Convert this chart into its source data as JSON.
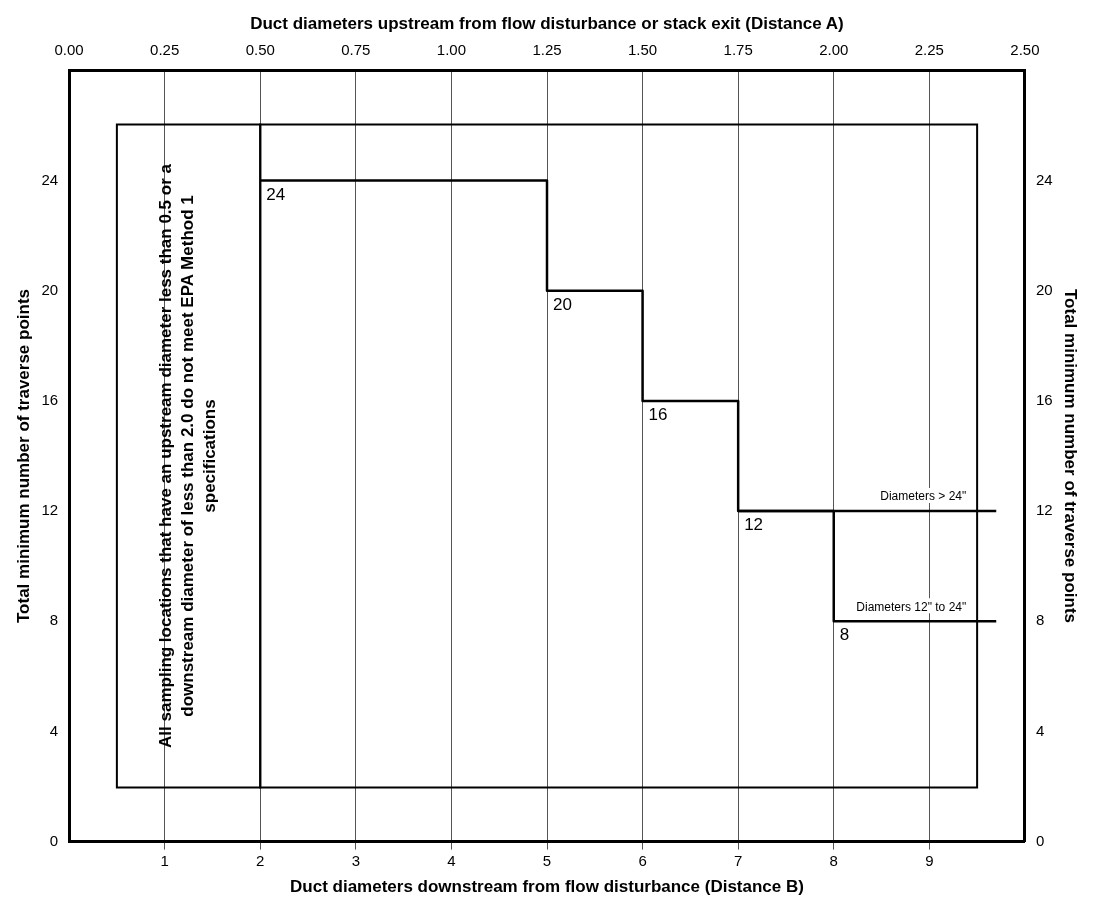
{
  "chart_data": {
    "type": "step",
    "xlabel": "Duct diameters downstream from flow disturbance (Distance B)",
    "x2label": "Duct diameters upstream from flow disturbance or stack exit (Distance A)",
    "ylabel": "Total minimum number of traverse points",
    "y2label": "Total minimum number of traverse points",
    "xlim": [
      0,
      10
    ],
    "xticks": [
      1,
      2,
      3,
      4,
      5,
      6,
      7,
      8,
      9
    ],
    "x2lim": [
      0,
      2.5
    ],
    "x2ticks": [
      {
        "value": 0,
        "label": "0.00"
      },
      {
        "value": 0.25,
        "label": "0.25"
      },
      {
        "value": 0.5,
        "label": "0.50"
      },
      {
        "value": 0.75,
        "label": "0.75"
      },
      {
        "value": 1,
        "label": "1.00"
      },
      {
        "value": 1.25,
        "label": "1.25"
      },
      {
        "value": 1.5,
        "label": "1.50"
      },
      {
        "value": 1.75,
        "label": "1.75"
      },
      {
        "value": 2,
        "label": "2.00"
      },
      {
        "value": 2.25,
        "label": "2.25"
      },
      {
        "value": 2.5,
        "label": "2.50"
      }
    ],
    "ylim": [
      0,
      28
    ],
    "yticks": [
      0,
      4,
      8,
      12,
      16,
      20,
      24
    ],
    "y2lim": [
      0,
      28
    ],
    "y2ticks": [
      0,
      4,
      8,
      12,
      16,
      20,
      24
    ],
    "grid": "x",
    "marker": "none",
    "series": [
      {
        "name": "Diameters > 24\"",
        "color": "#000000",
        "x": [
          2,
          5,
          6,
          7,
          9.7
        ],
        "values": [
          24,
          20,
          16,
          12,
          12
        ],
        "value_labels": [
          "24",
          "20",
          "16",
          "12",
          null
        ]
      },
      {
        "name": "Diameters 12\" to 24\"",
        "color": "#000000",
        "x": [
          7,
          8,
          9.7
        ],
        "values": [
          12,
          8,
          8
        ],
        "value_labels": [
          null,
          "8",
          null
        ]
      }
    ],
    "annotations": [
      "All sampling locations that have an upstream diameter less than 0.5 or a downstream diameter of less than 2.0 do not meet EPA Method 1 specifications"
    ]
  }
}
